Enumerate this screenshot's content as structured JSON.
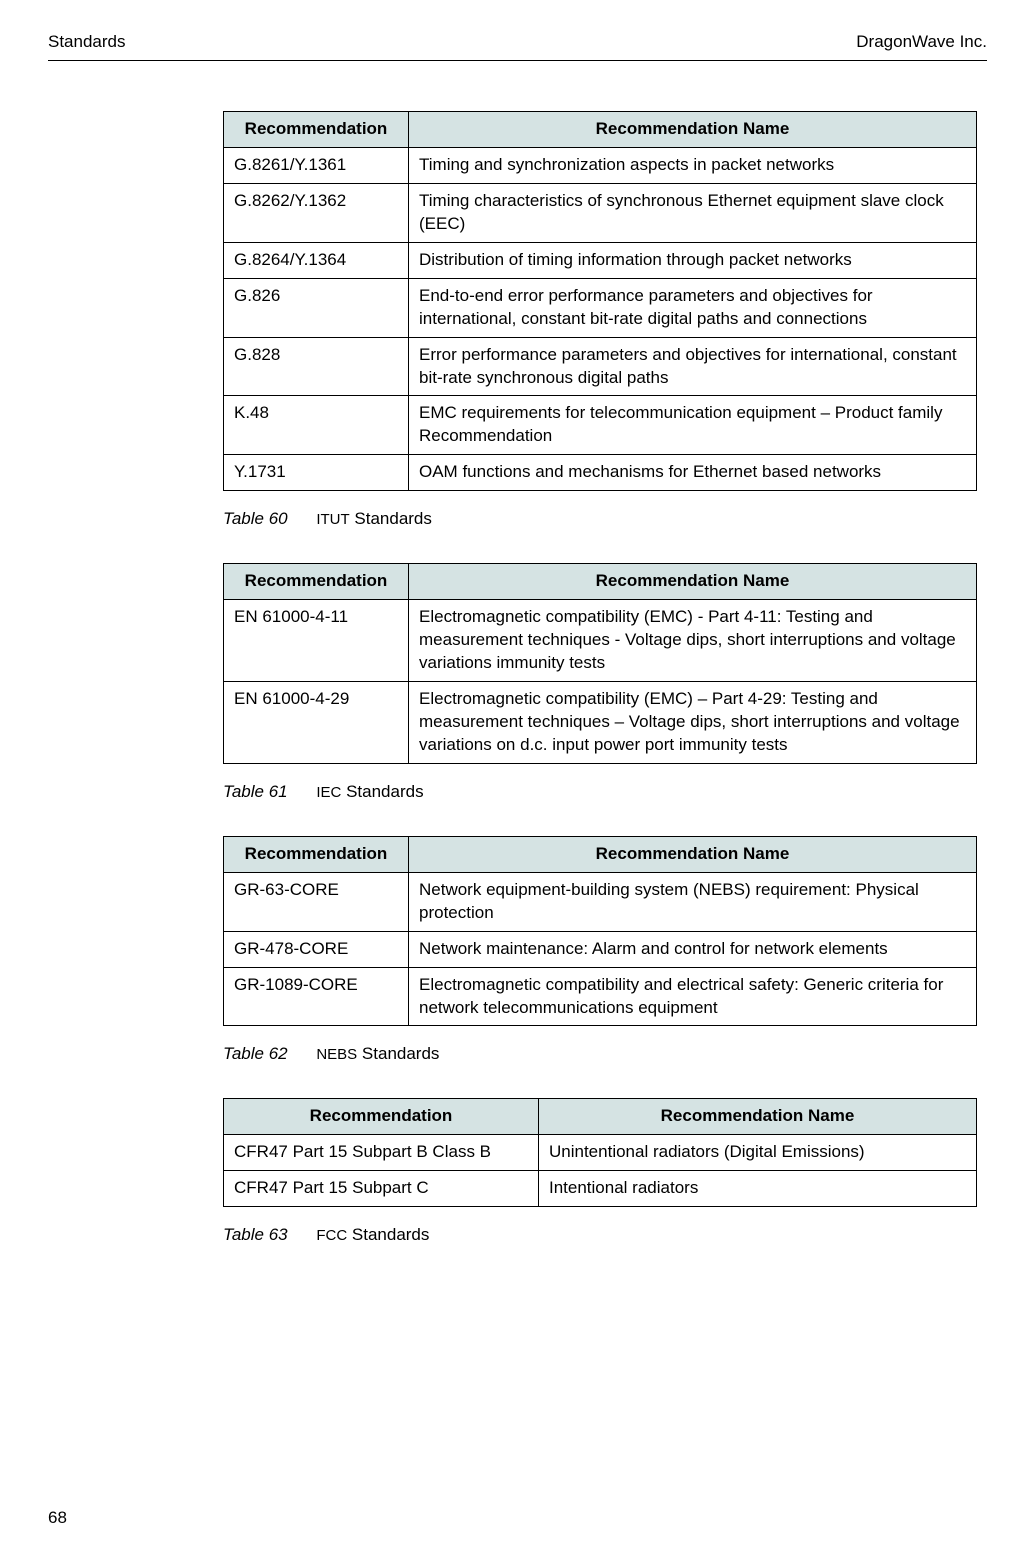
{
  "header": {
    "left": "Standards",
    "right": "DragonWave Inc."
  },
  "colors": {
    "header_bg": "#d5e3e3",
    "border": "#000000",
    "text": "#000000",
    "background": "#ffffff"
  },
  "tables": {
    "itut": {
      "columns": [
        "Recommendation",
        "Recommendation Name"
      ],
      "rows": [
        [
          "G.8261/Y.1361",
          "Timing and synchronization aspects in packet networks"
        ],
        [
          "G.8262/Y.1362",
          "Timing characteristics of synchronous Ethernet equipment slave clock (EEC)"
        ],
        [
          "G.8264/Y.1364",
          "Distribution of timing information through packet networks"
        ],
        [
          "G.826",
          "End-to-end error performance parameters and objectives for international, constant bit-rate digital paths and connections"
        ],
        [
          "G.828",
          "Error performance parameters and objectives for international, constant bit-rate synchronous digital paths"
        ],
        [
          "K.48",
          "EMC requirements for telecommunication equipment – Product family Recommendation"
        ],
        [
          "Y.1731",
          "OAM functions and mechanisms for Ethernet based networks"
        ]
      ],
      "caption_num": "Table 60",
      "caption_small": "ITUT",
      "caption_rest": " Standards"
    },
    "iec": {
      "columns": [
        "Recommendation",
        "Recommendation Name"
      ],
      "rows": [
        [
          "EN 61000-4-11",
          "Electromagnetic compatibility (EMC) - Part 4-11: Testing and measurement techniques - Voltage dips, short interruptions and voltage variations immunity tests"
        ],
        [
          "EN 61000-4-29",
          "Electromagnetic compatibility (EMC) – Part 4-29: Testing and measurement techniques – Voltage dips, short interruptions and voltage variations on d.c. input power port immunity tests"
        ]
      ],
      "caption_num": "Table 61",
      "caption_small": "IEC",
      "caption_rest": " Standards"
    },
    "nebs": {
      "columns": [
        "Recommendation",
        "Recommendation Name"
      ],
      "rows": [
        [
          "GR-63-CORE",
          "Network equipment-building system (NEBS) requirement: Physical protection"
        ],
        [
          "GR-478-CORE",
          "Network maintenance: Alarm and control for network elements"
        ],
        [
          "GR-1089-CORE",
          "Electromagnetic compatibility and electrical safety: Generic criteria for network telecommunications equipment"
        ]
      ],
      "caption_num": "Table 62",
      "caption_small": "NEBS",
      "caption_rest": " Standards"
    },
    "fcc": {
      "columns": [
        "Recommendation",
        "Recommendation Name"
      ],
      "rows": [
        [
          "CFR47 Part 15 Subpart B Class B",
          "Unintentional radiators (Digital Emissions)"
        ],
        [
          "CFR47 Part 15 Subpart C",
          "Intentional radiators"
        ]
      ],
      "caption_num": "Table 63",
      "caption_small": "FCC",
      "caption_rest": " Standards"
    }
  },
  "page_number": "68"
}
